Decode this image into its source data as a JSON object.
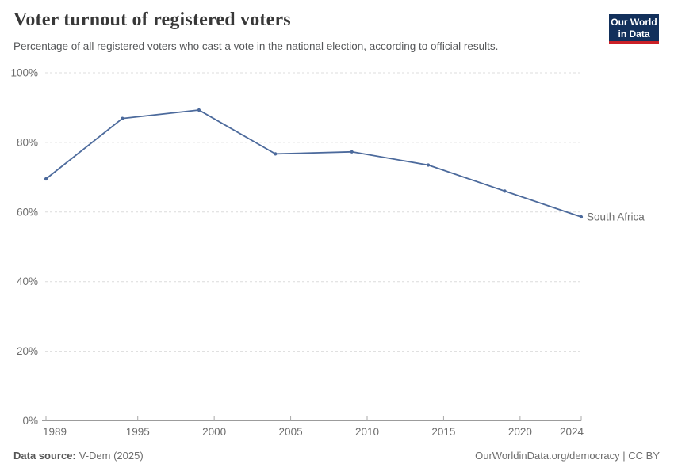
{
  "chart_data": {
    "type": "line",
    "title": "Voter turnout of registered voters",
    "subtitle": "Percentage of all registered voters who cast a vote in the national election, according to official results.",
    "x": [
      1989,
      1994,
      1999,
      2004,
      2009,
      2014,
      2019,
      2024
    ],
    "series": [
      {
        "name": "South Africa",
        "color": "#4c6a9c",
        "values": [
          69.5,
          86.9,
          89.3,
          76.7,
          77.3,
          73.5,
          66,
          58.6
        ]
      }
    ],
    "xlim": [
      1989,
      2024
    ],
    "ylim": [
      0,
      100
    ],
    "x_ticks": [
      1989,
      1995,
      2000,
      2005,
      2010,
      2015,
      2020,
      2024
    ],
    "y_ticks": [
      0,
      20,
      40,
      60,
      80,
      100
    ],
    "y_tick_suffix": "%",
    "grid": "horizontal-dashed",
    "legend_position": "end-of-line-label"
  },
  "logo": {
    "line1": "Our World",
    "line2": "in Data",
    "bg": "#12305b",
    "accent": "#cb2027"
  },
  "footer": {
    "source_label": "Data source:",
    "source_value": "V-Dem (2025)",
    "rights": "OurWorldinData.org/democracy | CC BY"
  }
}
